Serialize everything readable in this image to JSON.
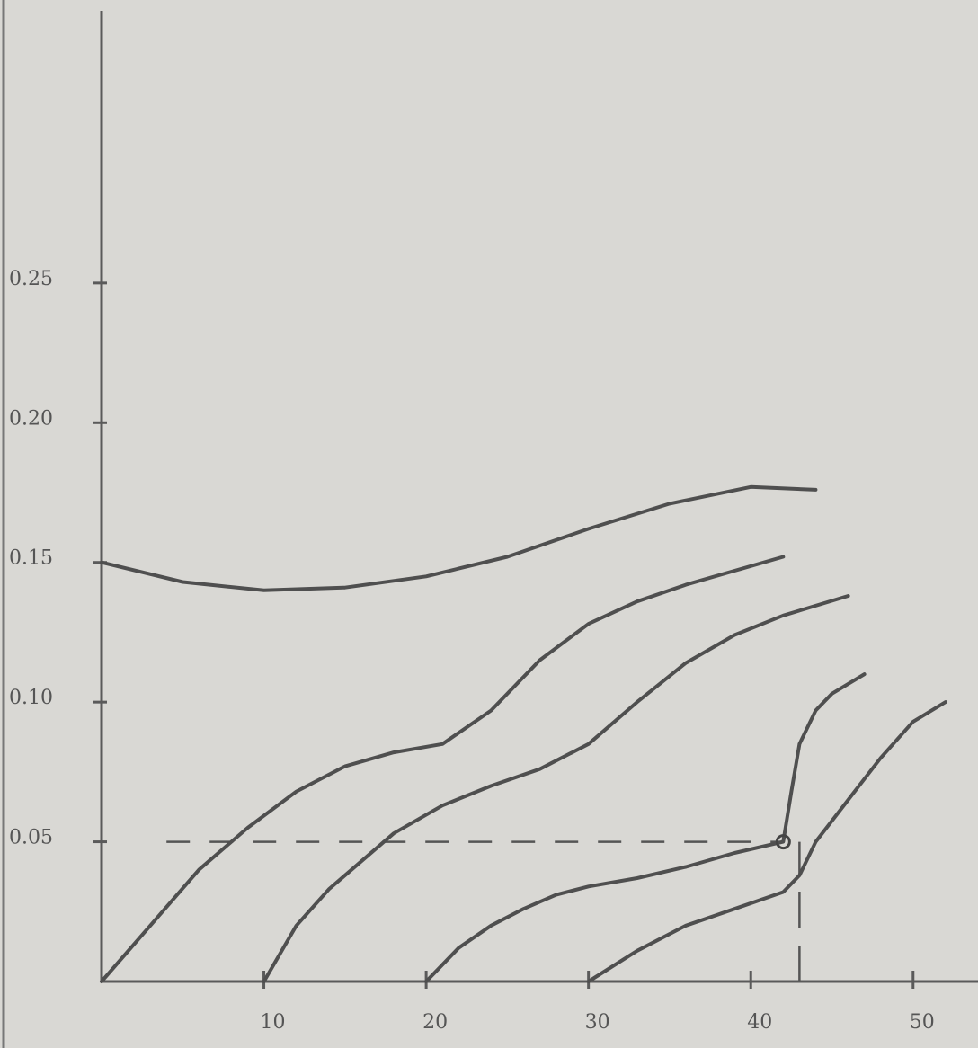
{
  "chart_data": {
    "type": "line",
    "xlim": [
      0,
      54
    ],
    "ylim": [
      0,
      0.35
    ],
    "xticks": [
      10,
      20,
      30,
      40,
      50
    ],
    "yticks": [
      0.05,
      {
        "value": 0.1,
        "label": "0.10"
      },
      0.15,
      {
        "value": 0.2,
        "label": "0.20"
      },
      0.25
    ],
    "grid": false,
    "series": [
      {
        "color": "#4f4f4f",
        "x": [
          0,
          5,
          10,
          15,
          20,
          25,
          30,
          35,
          40,
          44
        ],
        "values": [
          0.15,
          0.143,
          0.14,
          0.141,
          0.145,
          0.152,
          0.162,
          0.171,
          0.177,
          0.176
        ]
      },
      {
        "color": "#4f4f4f",
        "x": [
          0,
          3,
          6,
          9,
          12,
          15,
          18,
          21,
          24,
          27,
          30,
          33,
          36,
          39,
          42
        ],
        "values": [
          0,
          0.02,
          0.04,
          0.055,
          0.068,
          0.077,
          0.082,
          0.085,
          0.097,
          0.115,
          0.128,
          0.136,
          0.142,
          0.147,
          0.152
        ]
      },
      {
        "color": "#4f4f4f",
        "x": [
          10,
          12,
          14,
          16,
          18,
          21,
          24,
          27,
          30,
          33,
          36,
          39,
          42,
          46
        ],
        "values": [
          0,
          0.02,
          0.033,
          0.043,
          0.053,
          0.063,
          0.07,
          0.076,
          0.085,
          0.1,
          0.114,
          0.124,
          0.131,
          0.138
        ]
      },
      {
        "color": "#4f4f4f",
        "x": [
          20,
          22,
          24,
          26,
          28,
          30,
          33,
          36,
          39,
          42,
          42.5,
          43,
          44,
          45,
          47
        ],
        "values": [
          0,
          0.012,
          0.02,
          0.026,
          0.031,
          0.034,
          0.037,
          0.041,
          0.046,
          0.05,
          0.068,
          0.085,
          0.097,
          0.103,
          0.11
        ]
      },
      {
        "color": "#4f4f4f",
        "x": [
          30,
          33,
          36,
          39,
          42,
          43,
          44,
          46,
          48,
          50,
          52
        ],
        "values": [
          0,
          0.011,
          0.02,
          0.026,
          0.032,
          0.038,
          0.05,
          0.065,
          0.08,
          0.093,
          0.1
        ]
      }
    ],
    "marker": {
      "x": 42,
      "y": 0.05
    },
    "reference_lines": [
      {
        "axis": "y",
        "value": 0.05
      },
      {
        "axis": "x",
        "value": 43
      }
    ]
  }
}
